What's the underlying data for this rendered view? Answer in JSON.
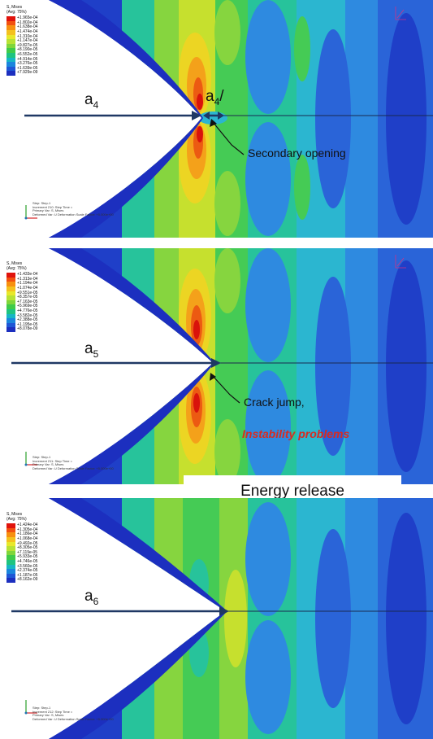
{
  "panels": [
    {
      "legend": {
        "title_1": "S, Mises",
        "title_2": "(Avg: 75%)",
        "values": [
          "+1.965e-04",
          "+1.802e-04",
          "+1.638e-04",
          "+1.474e-04",
          "+1.310e-04",
          "+1.147e-04",
          "+9.827e-05",
          "+8.190e-05",
          "+6.552e-05",
          "+4.914e-05",
          "+3.276e-05",
          "+1.639e-05",
          "+7.929e-09"
        ]
      },
      "crack_label": "a",
      "crack_sub": "4",
      "secondary_label": "a",
      "secondary_sub": "4",
      "secondary_mark": "/",
      "annotation": "Secondary opening",
      "footer": [
        "Step: Step-1",
        "Increment   210: Step Time =",
        "Primary Var: S, Mises",
        "Deformed Var: U  Deformation Scale Factor: +5.000e+00"
      ]
    },
    {
      "legend": {
        "title_1": "S, Mises",
        "title_2": "(Avg: 75%)",
        "values": [
          "+1.433e-04",
          "+1.313e-04",
          "+1.194e-04",
          "+1.074e-04",
          "+9.551e-05",
          "+8.357e-05",
          "+7.163e-05",
          "+5.969e-05",
          "+4.776e-05",
          "+3.582e-05",
          "+2.388e-05",
          "+1.195e-05",
          "+8.078e-09"
        ]
      },
      "crack_label": "a",
      "crack_sub": "5",
      "annotation": "Crack jump,",
      "annotation_red": "Instability problems",
      "footer": [
        "Step: Step-1",
        "Increment   211: Step Time =",
        "Primary Var: S, Mises",
        "Deformed Var: U  Deformation Scale Factor: +5.000e+00"
      ]
    },
    {
      "legend": {
        "title_1": "S, Mises",
        "title_2": "(Avg: 75%)",
        "values": [
          "+1.424e-04",
          "+1.305e-04",
          "+1.186e-04",
          "+1.068e-04",
          "+9.492e-05",
          "+8.305e-05",
          "+7.119e-05",
          "+5.933e-05",
          "+4.746e-05",
          "+3.560e-05",
          "+2.374e-05",
          "+1.187e-05",
          "+8.162e-09"
        ]
      },
      "crack_label": "a",
      "crack_sub": "6",
      "footer": [
        "Step: Step-1",
        "Increment   212: Step Time =",
        "Primary Var: S, Mises",
        "Deformed Var: U  Deformation Scale Factor: +5.000e+00"
      ]
    }
  ],
  "energy_label": "Energy release",
  "colors": {
    "legend_scale": [
      "#e0130c",
      "#f2500f",
      "#f7900f",
      "#f4c11d",
      "#e8e82a",
      "#b8e234",
      "#7fd63a",
      "#3fcb49",
      "#1ec480",
      "#16b6c4",
      "#1a86dd",
      "#1e57d6",
      "#1c2fbf"
    ],
    "contour_bands": [
      "#1f3fc8",
      "#2a64d8",
      "#2e8ae0",
      "#2bb6d0",
      "#27c39b",
      "#45cb55",
      "#86d53f",
      "#c6e02e",
      "#ecd523",
      "#f4a11a",
      "#ec5a12",
      "#d9120b"
    ],
    "arrow": "#1f3864",
    "annotation_red": "#d92b1f"
  }
}
